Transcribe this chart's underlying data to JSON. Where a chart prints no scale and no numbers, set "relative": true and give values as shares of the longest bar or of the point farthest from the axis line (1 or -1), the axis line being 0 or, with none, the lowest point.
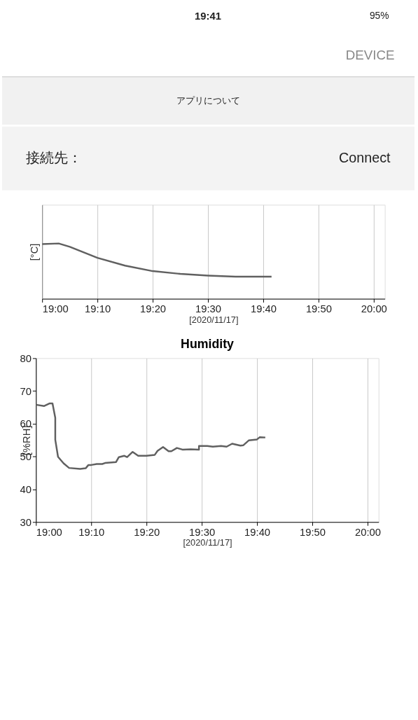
{
  "chart_data": [
    {
      "type": "line",
      "relative": true,
      "ylabel": "[°C]",
      "xlabel": "[2020/11/17]",
      "annotations": [
        "19:41",
        "95%",
        "DEVICE",
        "アプリについて",
        "接続先：",
        "Connect"
      ],
      "x": [
        "2020-11-17T19:00",
        "2020-11-17T19:03",
        "2020-11-17T19:05",
        "2020-11-17T19:10",
        "2020-11-17T19:15",
        "2020-11-17T19:20",
        "2020-11-17T19:25",
        "2020-11-17T19:30",
        "2020-11-17T19:35",
        "2020-11-17T19:40",
        "2020-11-17T19:41:30"
      ],
      "series": [
        {
          "color": "#606060",
          "values": [
            0.99,
            1,
            0.94,
            0.74,
            0.6,
            0.5,
            0.45,
            0.42,
            0.4,
            0.4,
            0.4
          ]
        }
      ],
      "xlim": [
        "2020-11-17T19:00",
        "2020-11-17T20:02"
      ],
      "xticks": [
        {
          "value": "2020-11-17T19:00",
          "label": "19:00"
        },
        {
          "value": "2020-11-17T19:10",
          "label": "19:10"
        },
        {
          "value": "2020-11-17T19:20",
          "label": "19:20"
        },
        {
          "value": "2020-11-17T19:30",
          "label": "19:30"
        },
        {
          "value": "2020-11-17T19:40",
          "label": "19:40"
        },
        {
          "value": "2020-11-17T19:50",
          "label": "19:50"
        },
        {
          "value": "2020-11-17T20:00",
          "label": "20:00"
        }
      ],
      "grid": "x",
      "marker": "none",
      "line_style": "solid"
    },
    {
      "type": "line",
      "title": "Humidity",
      "ylabel": "[%RH]",
      "xlabel": "[2020/11/17]",
      "x": [
        "2020-11-17T19:00",
        "2020-11-17T19:01:30",
        "2020-11-17T19:02:30",
        "2020-11-17T19:03",
        "2020-11-17T19:03:30",
        "2020-11-17T19:03:30",
        "2020-11-17T19:04",
        "2020-11-17T19:05",
        "2020-11-17T19:06",
        "2020-11-17T19:08",
        "2020-11-17T19:09",
        "2020-11-17T19:09:30",
        "2020-11-17T19:10",
        "2020-11-17T19:11",
        "2020-11-17T19:12",
        "2020-11-17T19:12:30",
        "2020-11-17T19:14:30",
        "2020-11-17T19:15",
        "2020-11-17T19:16",
        "2020-11-17T19:16:30",
        "2020-11-17T19:17:30",
        "2020-11-17T19:18:30",
        "2020-11-17T19:20",
        "2020-11-17T19:21:30",
        "2020-11-17T19:22",
        "2020-11-17T19:23",
        "2020-11-17T19:24",
        "2020-11-17T19:24:30",
        "2020-11-17T19:25:30",
        "2020-11-17T19:26:30",
        "2020-11-17T19:28",
        "2020-11-17T19:29:30",
        "2020-11-17T19:29:30",
        "2020-11-17T19:31",
        "2020-11-17T19:32",
        "2020-11-17T19:33:30",
        "2020-11-17T19:34:30",
        "2020-11-17T19:35:30",
        "2020-11-17T19:37",
        "2020-11-17T19:37:30",
        "2020-11-17T19:38:30",
        "2020-11-17T19:40",
        "2020-11-17T19:40:30",
        "2020-11-17T19:41:30"
      ],
      "series": [
        {
          "color": "#606060",
          "values": [
            65.8,
            65.4,
            66.2,
            66.2,
            61.8,
            55.1,
            49.9,
            47.9,
            46.5,
            46.2,
            46.4,
            47.4,
            47.4,
            47.7,
            47.7,
            48.0,
            48.3,
            49.8,
            50.2,
            49.8,
            51.4,
            50.2,
            50.2,
            50.5,
            51.7,
            52.9,
            51.6,
            51.6,
            52.6,
            52.1,
            52.2,
            52.1,
            53.2,
            53.2,
            53.0,
            53.2,
            53.0,
            53.9,
            53.3,
            53.4,
            54.9,
            55.2,
            55.9,
            55.8
          ]
        }
      ],
      "xlim": [
        "2020-11-17T19:00",
        "2020-11-17T20:02"
      ],
      "xticks": [
        {
          "value": "2020-11-17T19:00",
          "label": "19:00"
        },
        {
          "value": "2020-11-17T19:10",
          "label": "19:10"
        },
        {
          "value": "2020-11-17T19:20",
          "label": "19:20"
        },
        {
          "value": "2020-11-17T19:30",
          "label": "19:30"
        },
        {
          "value": "2020-11-17T19:40",
          "label": "19:40"
        },
        {
          "value": "2020-11-17T19:50",
          "label": "19:50"
        },
        {
          "value": "2020-11-17T20:00",
          "label": "20:00"
        }
      ],
      "ylim": [
        30,
        80
      ],
      "yticks": [
        30,
        40,
        50,
        60,
        70,
        80
      ],
      "grid": "x",
      "marker": "none",
      "line_style": "solid"
    }
  ]
}
